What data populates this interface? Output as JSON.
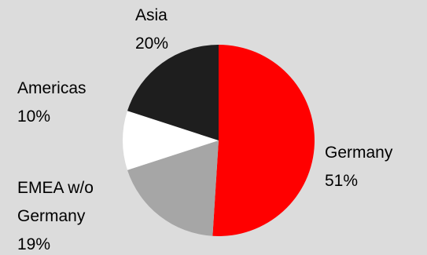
{
  "chart_data": {
    "type": "pie",
    "categories": [
      "Germany",
      "EMEA w/o Germany",
      "Americas",
      "Asia"
    ],
    "values": [
      51,
      19,
      10,
      20
    ],
    "value_labels": [
      "51%",
      "19%",
      "10%",
      "20%"
    ],
    "colors": [
      "#ff0000",
      "#a6a6a6",
      "#ffffff",
      "#1e1e1e"
    ]
  }
}
